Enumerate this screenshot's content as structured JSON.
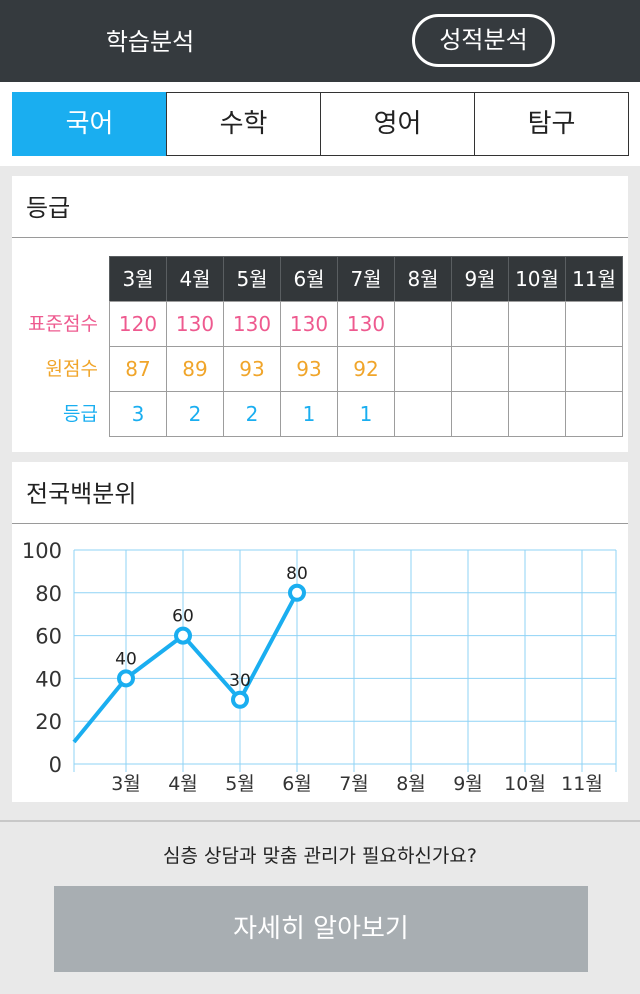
{
  "header": {
    "tab_analysis": "학습분석",
    "tab_grades": "성적분석"
  },
  "subjects": [
    "국어",
    "수학",
    "영어",
    "탐구"
  ],
  "grade_card": {
    "title": "등급",
    "months": [
      "3월",
      "4월",
      "5월",
      "6월",
      "7월",
      "8월",
      "9월",
      "10월",
      "11월"
    ],
    "rows": [
      {
        "label": "표준점수",
        "color": "#ee5a8f",
        "values": [
          "120",
          "130",
          "130",
          "130",
          "130",
          "",
          "",
          "",
          ""
        ]
      },
      {
        "label": "원점수",
        "color": "#f0a52a",
        "values": [
          "87",
          "89",
          "93",
          "93",
          "92",
          "",
          "",
          "",
          ""
        ]
      },
      {
        "label": "등급",
        "color": "#1aaef0",
        "values": [
          "3",
          "2",
          "2",
          "1",
          "1",
          "",
          "",
          "",
          ""
        ]
      }
    ]
  },
  "percentile_card": {
    "title": "전국백분위"
  },
  "chart_data": {
    "type": "line",
    "title": "전국백분위",
    "categories": [
      "3월",
      "4월",
      "5월",
      "6월",
      "7월",
      "8월",
      "9월",
      "10월",
      "11월"
    ],
    "series": [
      {
        "values": [
          40,
          60,
          30,
          80,
          null,
          null,
          null,
          null,
          null
        ]
      }
    ],
    "yticks": [
      0,
      20,
      40,
      60,
      80,
      100
    ],
    "ylim": [
      0,
      100
    ],
    "grid": true,
    "color": "#1aaef0"
  },
  "footer": {
    "question": "심층 상담과 맞춤 관리가 필요하신가요?",
    "cta": "자세히 알아보기"
  }
}
